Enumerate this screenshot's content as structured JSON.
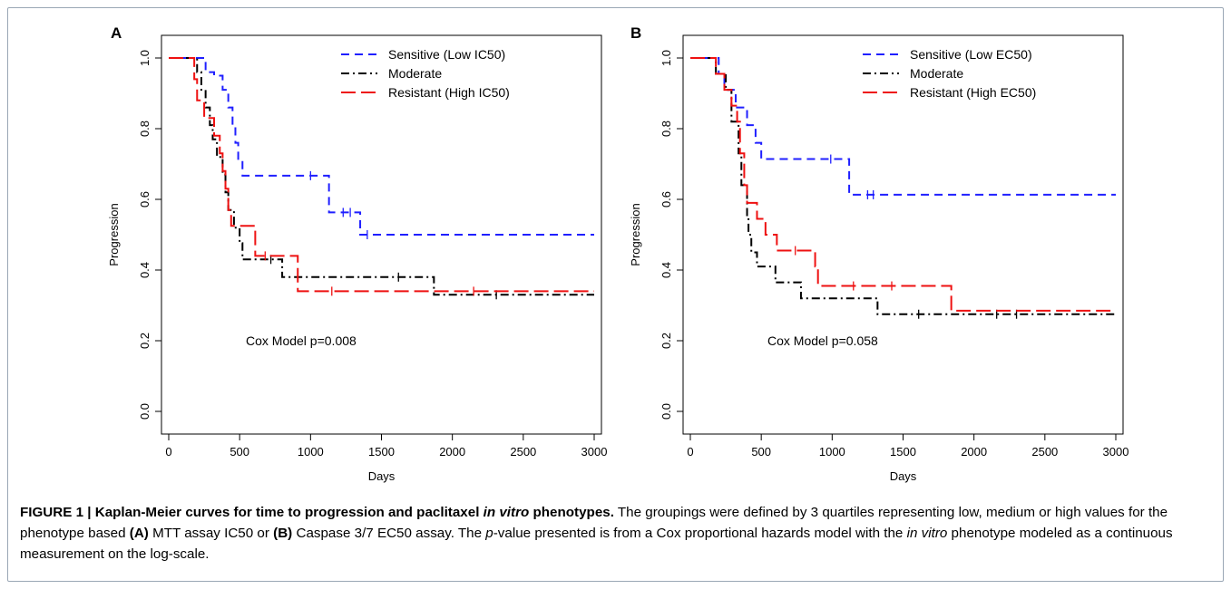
{
  "chart_data": [
    {
      "type": "line",
      "panel_label": "A",
      "xlabel": "Days",
      "ylabel": "Progression",
      "xlim": [
        0,
        3000
      ],
      "ylim": [
        0,
        1
      ],
      "xticks": [
        "0",
        "500",
        "1000",
        "1500",
        "2000",
        "2500",
        "3000"
      ],
      "yticks": [
        "0.0",
        "0.2",
        "0.4",
        "0.6",
        "0.8",
        "1.0"
      ],
      "legend_position": "top-right",
      "annotation": "Cox Model p=0.008",
      "series": [
        {
          "name": "Sensitive (Low IC50)",
          "color": "#1f1fff",
          "dash": "dash",
          "steps": [
            [
              0,
              1.0
            ],
            [
              260,
              0.96
            ],
            [
              320,
              0.95
            ],
            [
              380,
              0.91
            ],
            [
              420,
              0.86
            ],
            [
              450,
              0.81
            ],
            [
              470,
              0.76
            ],
            [
              490,
              0.71
            ],
            [
              520,
              0.667
            ],
            [
              1080,
              0.667
            ],
            [
              1130,
              0.563
            ],
            [
              1310,
              0.563
            ],
            [
              1350,
              0.5
            ],
            [
              3000,
              0.5
            ]
          ],
          "censors": [
            [
              1000,
              0.667
            ],
            [
              1230,
              0.563
            ],
            [
              1280,
              0.563
            ],
            [
              1400,
              0.5
            ]
          ]
        },
        {
          "name": "Moderate",
          "color": "#000000",
          "dash": "dashdot",
          "steps": [
            [
              0,
              1.0
            ],
            [
              200,
              0.96
            ],
            [
              230,
              0.91
            ],
            [
              260,
              0.86
            ],
            [
              290,
              0.81
            ],
            [
              310,
              0.77
            ],
            [
              340,
              0.72
            ],
            [
              380,
              0.67
            ],
            [
              400,
              0.62
            ],
            [
              420,
              0.57
            ],
            [
              460,
              0.52
            ],
            [
              500,
              0.476
            ],
            [
              520,
              0.43
            ],
            [
              770,
              0.43
            ],
            [
              800,
              0.38
            ],
            [
              1850,
              0.38
            ],
            [
              1870,
              0.33
            ],
            [
              3000,
              0.33
            ]
          ],
          "censors": [
            [
              720,
              0.43
            ],
            [
              1620,
              0.38
            ],
            [
              2310,
              0.33
            ]
          ]
        },
        {
          "name": "Resistant (High IC50)",
          "color": "#ee1111",
          "dash": "longdash",
          "steps": [
            [
              0,
              1.0
            ],
            [
              180,
              0.94
            ],
            [
              200,
              0.88
            ],
            [
              250,
              0.83
            ],
            [
              320,
              0.78
            ],
            [
              360,
              0.73
            ],
            [
              380,
              0.68
            ],
            [
              400,
              0.63
            ],
            [
              420,
              0.57
            ],
            [
              440,
              0.525
            ],
            [
              500,
              0.525
            ],
            [
              560,
              0.525
            ],
            [
              610,
              0.44
            ],
            [
              880,
              0.44
            ],
            [
              910,
              0.34
            ],
            [
              3000,
              0.34
            ]
          ],
          "censors": [
            [
              680,
              0.44
            ],
            [
              1150,
              0.34
            ],
            [
              2150,
              0.34
            ]
          ]
        }
      ]
    },
    {
      "type": "line",
      "panel_label": "B",
      "xlabel": "Days",
      "ylabel": "Progression",
      "xlim": [
        0,
        3000
      ],
      "ylim": [
        0,
        1
      ],
      "xticks": [
        "0",
        "500",
        "1000",
        "1500",
        "2000",
        "2500",
        "3000"
      ],
      "yticks": [
        "0.0",
        "0.2",
        "0.4",
        "0.6",
        "0.8",
        "1.0"
      ],
      "legend_position": "top-right",
      "annotation": "Cox Model p=0.058",
      "series": [
        {
          "name": "Sensitive (Low EC50)",
          "color": "#1f1fff",
          "dash": "dash",
          "steps": [
            [
              0,
              1.0
            ],
            [
              200,
              0.955
            ],
            [
              240,
              0.91
            ],
            [
              320,
              0.86
            ],
            [
              400,
              0.81
            ],
            [
              460,
              0.76
            ],
            [
              500,
              0.714
            ],
            [
              1060,
              0.714
            ],
            [
              1120,
              0.613
            ],
            [
              3000,
              0.613
            ]
          ],
          "censors": [
            [
              990,
              0.714
            ],
            [
              1250,
              0.613
            ],
            [
              1290,
              0.613
            ]
          ]
        },
        {
          "name": "Moderate",
          "color": "#000000",
          "dash": "dashdot",
          "steps": [
            [
              0,
              1.0
            ],
            [
              180,
              0.955
            ],
            [
              250,
              0.91
            ],
            [
              290,
              0.82
            ],
            [
              340,
              0.73
            ],
            [
              360,
              0.64
            ],
            [
              400,
              0.55
            ],
            [
              410,
              0.5
            ],
            [
              430,
              0.45
            ],
            [
              470,
              0.41
            ],
            [
              600,
              0.365
            ],
            [
              780,
              0.32
            ],
            [
              1320,
              0.275
            ],
            [
              3000,
              0.275
            ]
          ],
          "censors": [
            [
              1610,
              0.275
            ],
            [
              2160,
              0.275
            ],
            [
              2300,
              0.275
            ]
          ]
        },
        {
          "name": "Resistant (High EC50)",
          "color": "#ee1111",
          "dash": "longdash",
          "steps": [
            [
              0,
              1.0
            ],
            [
              180,
              0.955
            ],
            [
              240,
              0.91
            ],
            [
              290,
              0.865
            ],
            [
              330,
              0.82
            ],
            [
              350,
              0.73
            ],
            [
              380,
              0.64
            ],
            [
              400,
              0.59
            ],
            [
              470,
              0.545
            ],
            [
              530,
              0.5
            ],
            [
              610,
              0.455
            ],
            [
              880,
              0.41
            ],
            [
              900,
              0.355
            ],
            [
              1840,
              0.285
            ],
            [
              3000,
              0.285
            ]
          ],
          "censors": [
            [
              740,
              0.455
            ],
            [
              1150,
              0.355
            ],
            [
              1420,
              0.355
            ]
          ]
        }
      ]
    }
  ],
  "caption": {
    "figure_label": "FIGURE 1 | Kaplan-Meier curves for time to progression and paclitaxel ",
    "figure_label_italic": "in vitro",
    "figure_label_end": " phenotypes.",
    "text_1": " The groupings were defined by 3 quartiles representing low, medium or high values for the phenotype based ",
    "ref_a": "(A)",
    "text_2": " MTT assay IC50 or ",
    "ref_b": "(B)",
    "text_3": " Caspase 3/7 EC50 assay. The ",
    "p_italic": "p",
    "text_4": "-value presented is from a Cox proportional hazards model with the ",
    "in_vitro_italic": "in vitro",
    "text_5": " phenotype modeled as a continuous measurement on the log-scale."
  }
}
